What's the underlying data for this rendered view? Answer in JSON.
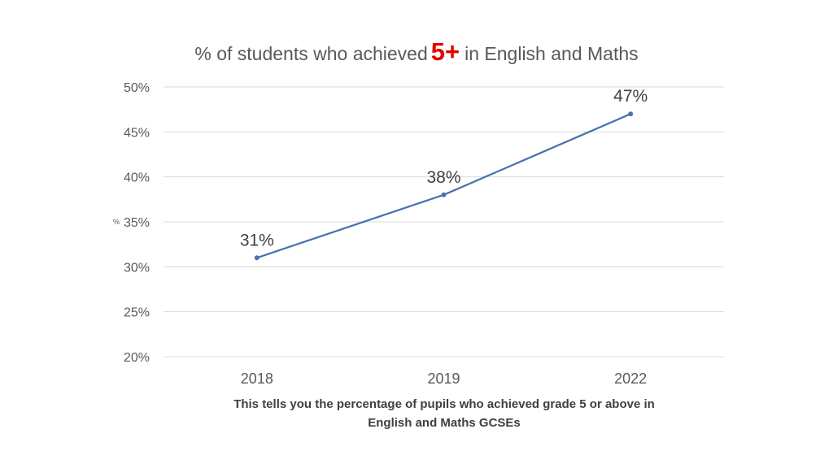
{
  "chart_data": {
    "type": "line",
    "title_parts": {
      "before": "% of students who achieved",
      "highlight": "5+",
      "after": "in English and Maths"
    },
    "ylabel": "%",
    "categories": [
      "2018",
      "2019",
      "2022"
    ],
    "values": [
      31,
      38,
      47
    ],
    "data_labels": [
      "31%",
      "38%",
      "47%"
    ],
    "ylim": [
      20,
      50
    ],
    "yticks": [
      20,
      25,
      30,
      35,
      40,
      45,
      50
    ],
    "ytick_labels": [
      "20%",
      "25%",
      "30%",
      "35%",
      "40%",
      "45%",
      "50%"
    ],
    "grid": true,
    "line_color": "#4a72b2",
    "highlight_color": "#e00000",
    "caption_lines": [
      "This tells you the percentage of pupils who achieved grade 5 or above in",
      "English and Maths GCSEs"
    ]
  }
}
